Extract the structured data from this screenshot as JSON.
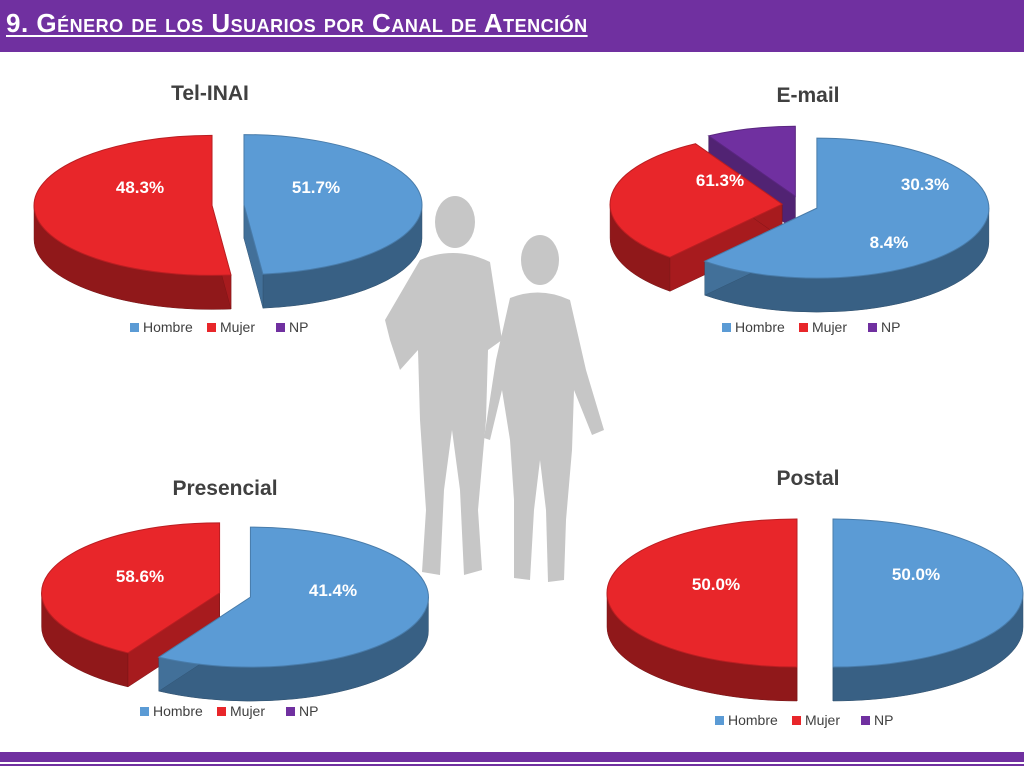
{
  "header": {
    "title": "9. Género de los Usuarios por Canal de Atención"
  },
  "colors": {
    "header": "#7030a0",
    "Hombre": "#5b9bd5",
    "Mujer": "#e8262a",
    "NP": "#7030a0",
    "silhouette": "#c6c6c6"
  },
  "icons": {
    "background": "couple-silhouette-icon"
  },
  "chart_data": [
    {
      "type": "pie",
      "title": "Tel-INAI",
      "categories": [
        "Hombre",
        "Mujer",
        "NP"
      ],
      "values": [
        48.3,
        51.7,
        0
      ],
      "labels": [
        "48.3%",
        "51.7%",
        ""
      ],
      "legend": [
        "Hombre",
        "Mujer",
        "NP"
      ],
      "legend_position": "bottom"
    },
    {
      "type": "pie",
      "title": "E-mail",
      "categories": [
        "Hombre",
        "Mujer",
        "NP"
      ],
      "values": [
        61.3,
        30.3,
        8.4
      ],
      "labels": [
        "61.3%",
        "30.3%",
        "8.4%"
      ],
      "legend": [
        "Hombre",
        "Mujer",
        "NP"
      ],
      "legend_position": "bottom"
    },
    {
      "type": "pie",
      "title": "Presencial",
      "categories": [
        "Hombre",
        "Mujer",
        "NP"
      ],
      "values": [
        58.6,
        41.4,
        0
      ],
      "labels": [
        "58.6%",
        "41.4%",
        ""
      ],
      "legend": [
        "Hombre",
        "Mujer",
        "NP"
      ],
      "legend_position": "bottom"
    },
    {
      "type": "pie",
      "title": "Postal",
      "categories": [
        "Hombre",
        "Mujer",
        "NP"
      ],
      "values": [
        50.0,
        50.0,
        0
      ],
      "labels": [
        "50.0%",
        "50.0%",
        ""
      ],
      "legend": [
        "Hombre",
        "Mujer",
        "NP"
      ],
      "legend_position": "bottom"
    }
  ]
}
